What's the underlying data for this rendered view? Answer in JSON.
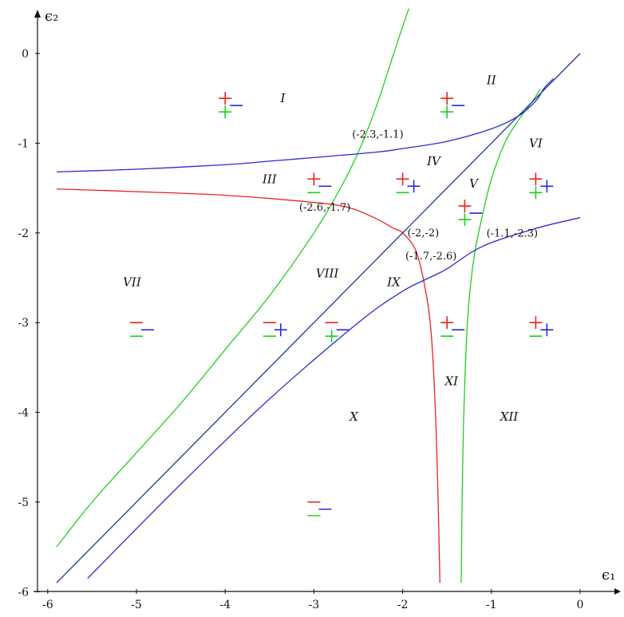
{
  "chart_data": {
    "type": "line",
    "xlabel": "ϵ₁",
    "ylabel": "ϵ₂",
    "xlim": [
      -6,
      0.3
    ],
    "ylim": [
      -6,
      0.4
    ],
    "x_ticks": [
      -6,
      -5,
      -4,
      -3,
      -2,
      -1,
      0
    ],
    "y_ticks": [
      0,
      -1,
      -2,
      -3,
      -4,
      -5,
      -6
    ],
    "grid": false,
    "colors": {
      "red": "#e8231f",
      "green": "#1ecf1e",
      "blue": "#2a2ad8",
      "navy": "#1e3a8a",
      "axis": "#111111"
    },
    "curves": [
      {
        "color": "green",
        "points": [
          [
            -5.9,
            -5.5
          ],
          [
            -5.5,
            -5.0
          ],
          [
            -5.0,
            -4.45
          ],
          [
            -4.5,
            -3.9
          ],
          [
            -4.0,
            -3.3
          ],
          [
            -3.5,
            -2.7
          ],
          [
            -3.0,
            -2.0
          ],
          [
            -2.7,
            -1.5
          ],
          [
            -2.5,
            -1.1
          ],
          [
            -2.3,
            -0.6
          ],
          [
            -2.15,
            -0.15
          ],
          [
            -2.0,
            0.3
          ],
          [
            -1.93,
            0.5
          ]
        ]
      },
      {
        "color": "green",
        "points": [
          [
            -0.45,
            -0.4
          ],
          [
            -0.55,
            -0.55
          ],
          [
            -0.7,
            -0.75
          ],
          [
            -0.85,
            -1.0
          ],
          [
            -1.0,
            -1.4
          ],
          [
            -1.1,
            -1.8
          ],
          [
            -1.2,
            -2.3
          ],
          [
            -1.27,
            -3.0
          ],
          [
            -1.31,
            -4.0
          ],
          [
            -1.33,
            -5.0
          ],
          [
            -1.34,
            -5.9
          ]
        ]
      },
      {
        "color": "blue",
        "points": [
          [
            -5.9,
            -1.32
          ],
          [
            -5.0,
            -1.29
          ],
          [
            -4.0,
            -1.24
          ],
          [
            -3.5,
            -1.2
          ],
          [
            -3.0,
            -1.16
          ],
          [
            -2.3,
            -1.1
          ],
          [
            -2.0,
            -1.06
          ],
          [
            -1.5,
            -0.98
          ],
          [
            -1.0,
            -0.84
          ],
          [
            -0.7,
            -0.7
          ],
          [
            -0.5,
            -0.53
          ],
          [
            -0.4,
            -0.38
          ],
          [
            -0.3,
            -0.28
          ]
        ]
      },
      {
        "color": "red",
        "points": [
          [
            -5.9,
            -1.51
          ],
          [
            -5.0,
            -1.54
          ],
          [
            -4.0,
            -1.58
          ],
          [
            -3.0,
            -1.66
          ],
          [
            -2.6,
            -1.72
          ],
          [
            -2.3,
            -1.84
          ],
          [
            -2.1,
            -1.95
          ],
          [
            -2.0,
            -2.0
          ],
          [
            -1.85,
            -2.2
          ],
          [
            -1.75,
            -2.6
          ],
          [
            -1.68,
            -3.1
          ],
          [
            -1.63,
            -4.0
          ],
          [
            -1.6,
            -5.0
          ],
          [
            -1.58,
            -5.9
          ]
        ]
      },
      {
        "color": "navy",
        "points": [
          [
            -5.9,
            -5.9
          ],
          [
            0,
            0
          ]
        ]
      },
      {
        "color": "blue",
        "points": [
          [
            -5.55,
            -5.85
          ],
          [
            -4.5,
            -4.8
          ],
          [
            -3.5,
            -3.85
          ],
          [
            -2.5,
            -3.0
          ],
          [
            -2.0,
            -2.65
          ],
          [
            -1.7,
            -2.5
          ],
          [
            -1.5,
            -2.4
          ],
          [
            -1.1,
            -2.15
          ],
          [
            -0.5,
            -1.95
          ],
          [
            0,
            -1.83
          ]
        ]
      }
    ],
    "point_labels": [
      {
        "text": "(-2.3,-1.1)",
        "x": -2.3,
        "y": -1.1
      },
      {
        "text": "(-2.6,-1.7)",
        "x": -2.6,
        "y": -1.7
      },
      {
        "text": "(-2,-2)",
        "x": -2,
        "y": -2
      },
      {
        "text": "(-1.1,-2.3)",
        "x": -1.1,
        "y": -2.3
      },
      {
        "text": "(-1.7,-2.6)",
        "x": -1.7,
        "y": -2.6
      }
    ],
    "regions": [
      {
        "label": "I",
        "x": -3.35,
        "y": -0.5
      },
      {
        "label": "II",
        "x": -1.0,
        "y": -0.3
      },
      {
        "label": "III",
        "x": -3.5,
        "y": -1.4
      },
      {
        "label": "IV",
        "x": -1.65,
        "y": -1.2
      },
      {
        "label": "V",
        "x": -1.2,
        "y": -1.45
      },
      {
        "label": "VI",
        "x": -0.5,
        "y": -1.0
      },
      {
        "label": "VII",
        "x": -5.05,
        "y": -2.55
      },
      {
        "label": "VIII",
        "x": -2.85,
        "y": -2.45
      },
      {
        "label": "IX",
        "x": -2.1,
        "y": -2.55
      },
      {
        "label": "X",
        "x": -2.55,
        "y": -4.05
      },
      {
        "label": "XI",
        "x": -1.45,
        "y": -3.65
      },
      {
        "label": "XII",
        "x": -0.8,
        "y": -4.05
      }
    ],
    "sign_markers": [
      {
        "x": -4.0,
        "y": -0.5,
        "signs": [
          "+",
          "-",
          "+"
        ]
      },
      {
        "x": -1.5,
        "y": -0.5,
        "signs": [
          "+",
          "-",
          "+"
        ]
      },
      {
        "x": -3.0,
        "y": -1.4,
        "signs": [
          "+",
          "-",
          "-"
        ]
      },
      {
        "x": -2.0,
        "y": -1.4,
        "signs": [
          "+",
          "+",
          "-"
        ]
      },
      {
        "x": -0.5,
        "y": -1.4,
        "signs": [
          "+",
          "+",
          "+"
        ]
      },
      {
        "x": -1.3,
        "y": -1.7,
        "signs": [
          "+",
          "-",
          "+"
        ]
      },
      {
        "x": -5.0,
        "y": -3.0,
        "signs": [
          "-",
          "-",
          "-"
        ]
      },
      {
        "x": -3.5,
        "y": -3.0,
        "signs": [
          "-",
          "+",
          "-"
        ]
      },
      {
        "x": -2.8,
        "y": -3.0,
        "signs": [
          "-",
          "-",
          "+"
        ]
      },
      {
        "x": -1.5,
        "y": -3.0,
        "signs": [
          "+",
          "-",
          "-"
        ]
      },
      {
        "x": -0.5,
        "y": -3.0,
        "signs": [
          "+",
          "+",
          "-"
        ]
      },
      {
        "x": -3.0,
        "y": -5.0,
        "signs": [
          "-",
          "-",
          "-"
        ]
      }
    ]
  }
}
